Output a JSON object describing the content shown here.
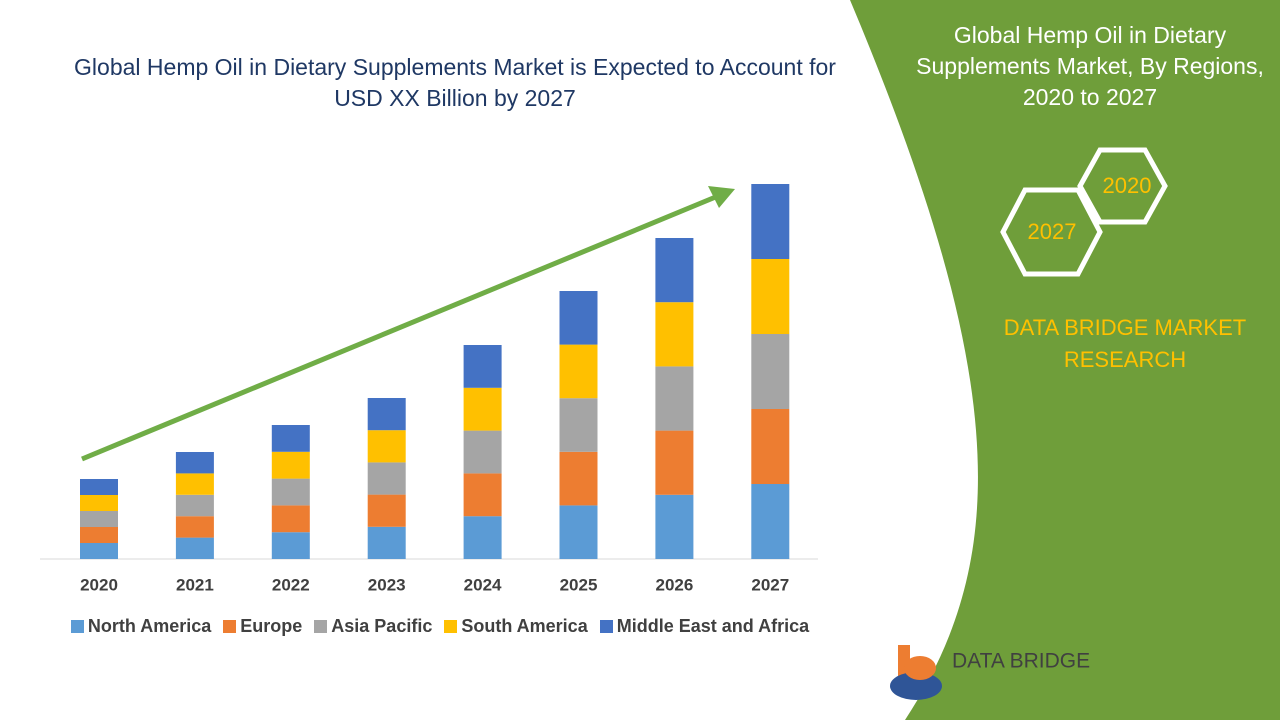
{
  "chart_data": {
    "type": "bar",
    "stacked": true,
    "title": "Global Hemp Oil in Dietary Supplements Market is Expected to Account for USD XX Billion by 2027",
    "categories": [
      "2020",
      "2021",
      "2022",
      "2023",
      "2024",
      "2025",
      "2026",
      "2027"
    ],
    "series": [
      {
        "name": "North America",
        "color": "#5b9bd5",
        "values": [
          16,
          21.4,
          26.8,
          32.2,
          42.8,
          53.6,
          64.2,
          75
        ]
      },
      {
        "name": "Europe",
        "color": "#ed7d31",
        "values": [
          16,
          21.4,
          26.8,
          32.2,
          42.8,
          53.6,
          64.2,
          75
        ]
      },
      {
        "name": "Asia Pacific",
        "color": "#a5a5a5",
        "values": [
          16,
          21.4,
          26.8,
          32.2,
          42.8,
          53.6,
          64.2,
          75
        ]
      },
      {
        "name": "South America",
        "color": "#ffc000",
        "values": [
          16,
          21.4,
          26.8,
          32.2,
          42.8,
          53.6,
          64.2,
          75
        ]
      },
      {
        "name": "Middle East and Africa",
        "color": "#4472c4",
        "values": [
          16,
          21.4,
          26.8,
          32.2,
          42.8,
          53.6,
          64.2,
          75
        ]
      }
    ]
  },
  "panel": {
    "title": "Global Hemp Oil in Dietary Supplements Market, By Regions, 2020 to 2027",
    "hex_start": "2020",
    "hex_end": "2027",
    "brand": "DATA BRIDGE MARKET RESEARCH"
  },
  "logo": {
    "name": "DATA BRIDGE"
  }
}
